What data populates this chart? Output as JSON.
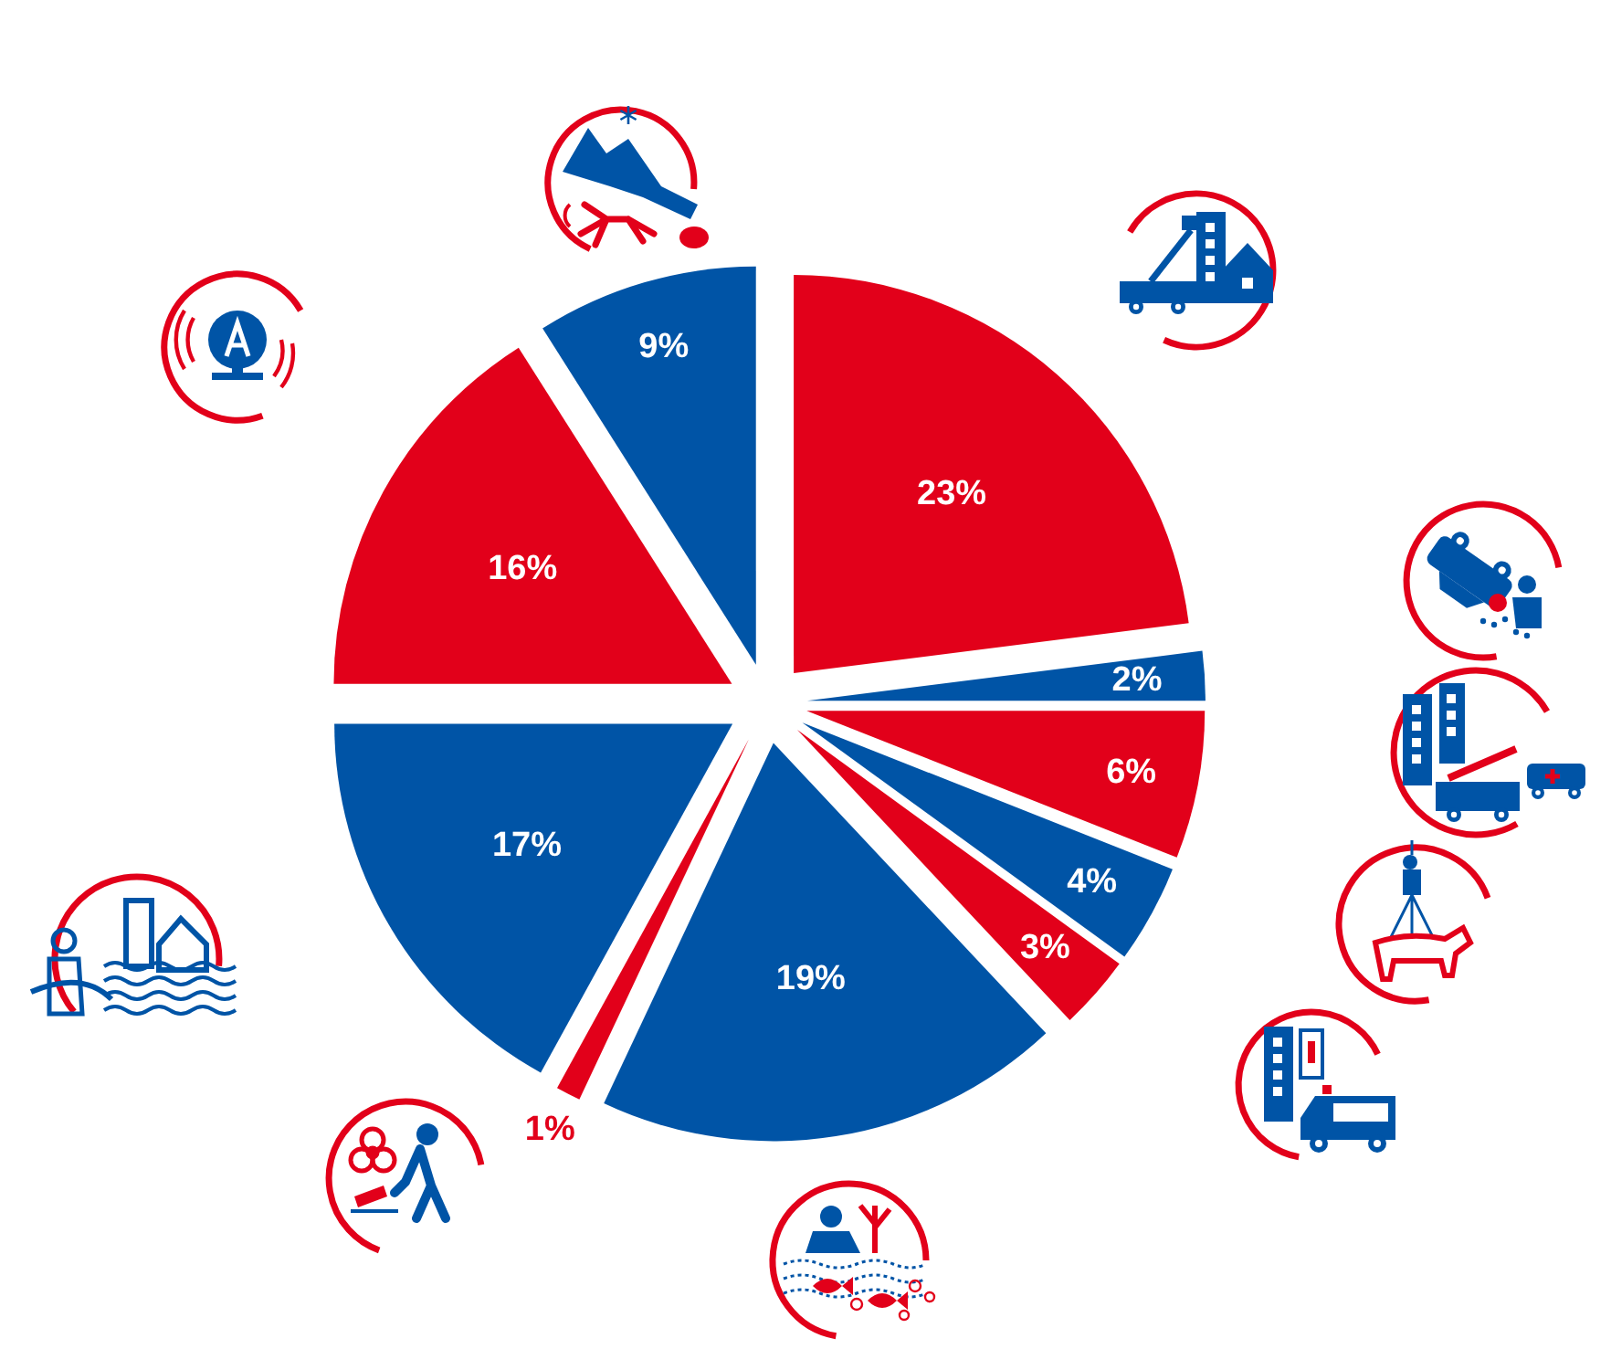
{
  "chart_data": {
    "type": "pie",
    "categories": [
      null,
      null,
      null,
      null,
      null,
      null,
      null,
      null,
      null,
      null
    ],
    "values": [
      23,
      2,
      6,
      4,
      3,
      19,
      1,
      17,
      16,
      9
    ],
    "colors": [
      "#e2001a",
      "#0054a6",
      "#e2001a",
      "#0054a6",
      "#e2001a",
      "#0054a6",
      "#e2001a",
      "#0054a6",
      "#e2001a",
      "#0054a6"
    ],
    "value_labels": [
      "23%",
      "2%",
      "6%",
      "4%",
      "3%",
      "19%",
      "1%",
      "17%",
      "16%",
      "9%"
    ]
  }
}
